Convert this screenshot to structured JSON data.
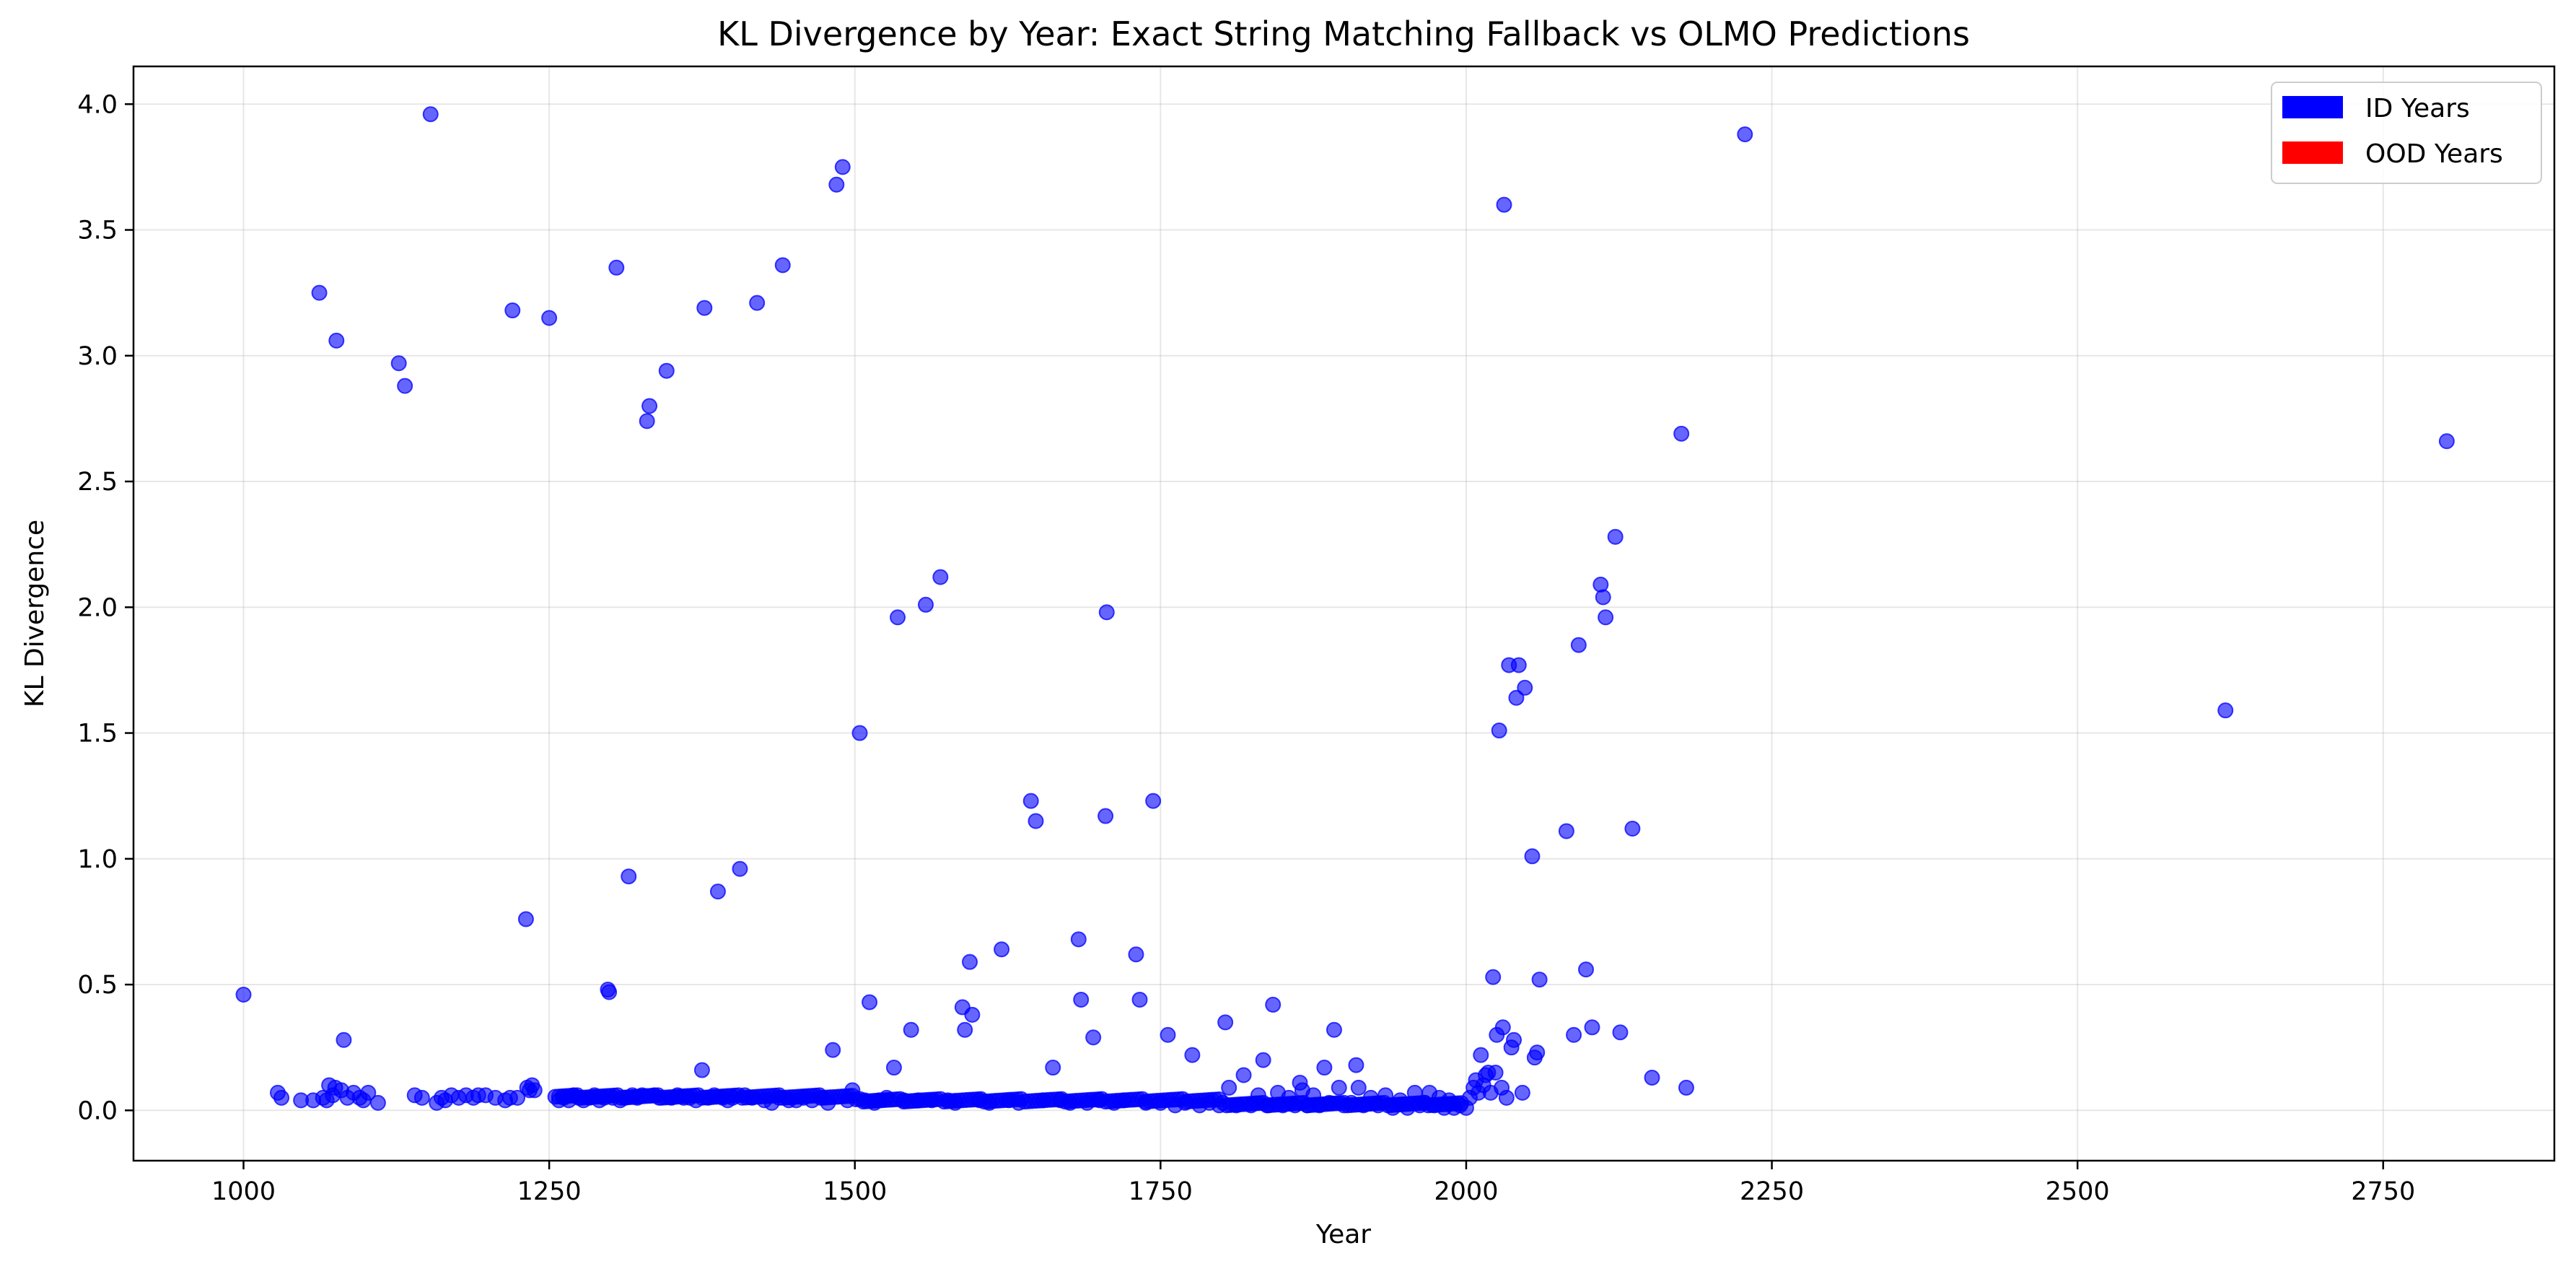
{
  "chart_data": {
    "type": "scatter",
    "title": "KL Divergence by Year: Exact String Matching Fallback vs OLMO Predictions",
    "xlabel": "Year",
    "ylabel": "KL Divergence",
    "xlim": [
      910,
      2890
    ],
    "ylim": [
      -0.2,
      4.15
    ],
    "xticks": [
      1000,
      1250,
      1500,
      1750,
      2000,
      2250,
      2500,
      2750
    ],
    "yticks": [
      0.0,
      0.5,
      1.0,
      1.5,
      2.0,
      2.5,
      3.0,
      3.5,
      4.0
    ],
    "grid": true,
    "legend_position": "top-right",
    "legend": [
      {
        "label": "ID Years",
        "color": "#0000ff"
      },
      {
        "label": "OOD Years",
        "color": "#ff0000"
      }
    ],
    "marker_color": "#0000ff",
    "marker_opacity": 0.6,
    "points": [
      [
        1000,
        0.46
      ],
      [
        1028,
        0.07
      ],
      [
        1031,
        0.05
      ],
      [
        1047,
        0.04
      ],
      [
        1057,
        0.04
      ],
      [
        1062,
        3.25
      ],
      [
        1065,
        0.05
      ],
      [
        1068,
        0.04
      ],
      [
        1070,
        0.1
      ],
      [
        1073,
        0.06
      ],
      [
        1075,
        0.09
      ],
      [
        1076,
        3.06
      ],
      [
        1080,
        0.08
      ],
      [
        1082,
        0.28
      ],
      [
        1085,
        0.05
      ],
      [
        1090,
        0.07
      ],
      [
        1095,
        0.05
      ],
      [
        1098,
        0.04
      ],
      [
        1102,
        0.07
      ],
      [
        1110,
        0.03
      ],
      [
        1127,
        2.97
      ],
      [
        1132,
        2.88
      ],
      [
        1140,
        0.06
      ],
      [
        1146,
        0.05
      ],
      [
        1153,
        3.96
      ],
      [
        1158,
        0.03
      ],
      [
        1162,
        0.05
      ],
      [
        1165,
        0.04
      ],
      [
        1170,
        0.06
      ],
      [
        1176,
        0.05
      ],
      [
        1182,
        0.06
      ],
      [
        1188,
        0.05
      ],
      [
        1192,
        0.06
      ],
      [
        1198,
        0.06
      ],
      [
        1206,
        0.05
      ],
      [
        1214,
        0.04
      ],
      [
        1218,
        0.05
      ],
      [
        1220,
        3.18
      ],
      [
        1224,
        0.05
      ],
      [
        1231,
        0.76
      ],
      [
        1232,
        0.09
      ],
      [
        1234,
        0.08
      ],
      [
        1236,
        0.1
      ],
      [
        1238,
        0.08
      ],
      [
        1250,
        3.15
      ],
      [
        1258,
        0.04
      ],
      [
        1262,
        0.05
      ],
      [
        1266,
        0.04
      ],
      [
        1270,
        0.06
      ],
      [
        1274,
        0.05
      ],
      [
        1278,
        0.04
      ],
      [
        1283,
        0.05
      ],
      [
        1287,
        0.06
      ],
      [
        1291,
        0.04
      ],
      [
        1295,
        0.05
      ],
      [
        1298,
        0.48
      ],
      [
        1299,
        0.47
      ],
      [
        1302,
        0.05
      ],
      [
        1305,
        3.35
      ],
      [
        1308,
        0.04
      ],
      [
        1312,
        0.05
      ],
      [
        1315,
        0.93
      ],
      [
        1318,
        0.06
      ],
      [
        1322,
        0.05
      ],
      [
        1326,
        0.06
      ],
      [
        1330,
        2.74
      ],
      [
        1332,
        2.8
      ],
      [
        1336,
        0.06
      ],
      [
        1340,
        0.05
      ],
      [
        1346,
        2.94
      ],
      [
        1350,
        0.05
      ],
      [
        1355,
        0.06
      ],
      [
        1360,
        0.05
      ],
      [
        1365,
        0.05
      ],
      [
        1370,
        0.04
      ],
      [
        1375,
        0.16
      ],
      [
        1377,
        3.19
      ],
      [
        1380,
        0.05
      ],
      [
        1385,
        0.06
      ],
      [
        1388,
        0.87
      ],
      [
        1392,
        0.05
      ],
      [
        1396,
        0.04
      ],
      [
        1400,
        0.05
      ],
      [
        1406,
        0.96
      ],
      [
        1410,
        0.06
      ],
      [
        1416,
        0.05
      ],
      [
        1420,
        3.21
      ],
      [
        1426,
        0.04
      ],
      [
        1432,
        0.03
      ],
      [
        1438,
        0.05
      ],
      [
        1441,
        3.36
      ],
      [
        1446,
        0.04
      ],
      [
        1452,
        0.04
      ],
      [
        1458,
        0.05
      ],
      [
        1465,
        0.04
      ],
      [
        1472,
        0.05
      ],
      [
        1478,
        0.03
      ],
      [
        1482,
        0.24
      ],
      [
        1485,
        3.68
      ],
      [
        1490,
        3.75
      ],
      [
        1494,
        0.04
      ],
      [
        1498,
        0.08
      ],
      [
        1504,
        1.5
      ],
      [
        1508,
        0.04
      ],
      [
        1512,
        0.43
      ],
      [
        1516,
        0.03
      ],
      [
        1520,
        0.04
      ],
      [
        1526,
        0.05
      ],
      [
        1532,
        0.17
      ],
      [
        1535,
        1.96
      ],
      [
        1540,
        0.04
      ],
      [
        1546,
        0.32
      ],
      [
        1552,
        0.04
      ],
      [
        1558,
        2.01
      ],
      [
        1563,
        0.04
      ],
      [
        1570,
        2.12
      ],
      [
        1576,
        0.04
      ],
      [
        1582,
        0.03
      ],
      [
        1588,
        0.41
      ],
      [
        1590,
        0.32
      ],
      [
        1594,
        0.59
      ],
      [
        1596,
        0.38
      ],
      [
        1602,
        0.04
      ],
      [
        1610,
        0.03
      ],
      [
        1620,
        0.64
      ],
      [
        1626,
        0.04
      ],
      [
        1634,
        0.03
      ],
      [
        1644,
        1.23
      ],
      [
        1648,
        1.15
      ],
      [
        1654,
        0.04
      ],
      [
        1662,
        0.17
      ],
      [
        1668,
        0.04
      ],
      [
        1676,
        0.03
      ],
      [
        1683,
        0.68
      ],
      [
        1685,
        0.44
      ],
      [
        1690,
        0.03
      ],
      [
        1695,
        0.29
      ],
      [
        1700,
        0.04
      ],
      [
        1705,
        1.17
      ],
      [
        1706,
        1.98
      ],
      [
        1712,
        0.03
      ],
      [
        1720,
        0.04
      ],
      [
        1730,
        0.62
      ],
      [
        1733,
        0.44
      ],
      [
        1738,
        0.03
      ],
      [
        1744,
        1.23
      ],
      [
        1750,
        0.03
      ],
      [
        1756,
        0.3
      ],
      [
        1762,
        0.02
      ],
      [
        1770,
        0.03
      ],
      [
        1776,
        0.22
      ],
      [
        1782,
        0.02
      ],
      [
        1790,
        0.03
      ],
      [
        1798,
        0.02
      ],
      [
        1803,
        0.35
      ],
      [
        1806,
        0.09
      ],
      [
        1812,
        0.02
      ],
      [
        1818,
        0.14
      ],
      [
        1824,
        0.02
      ],
      [
        1830,
        0.06
      ],
      [
        1834,
        0.2
      ],
      [
        1838,
        0.02
      ],
      [
        1842,
        0.42
      ],
      [
        1846,
        0.07
      ],
      [
        1850,
        0.02
      ],
      [
        1855,
        0.05
      ],
      [
        1860,
        0.02
      ],
      [
        1864,
        0.11
      ],
      [
        1866,
        0.08
      ],
      [
        1870,
        0.02
      ],
      [
        1875,
        0.06
      ],
      [
        1880,
        0.02
      ],
      [
        1884,
        0.17
      ],
      [
        1888,
        0.03
      ],
      [
        1892,
        0.32
      ],
      [
        1896,
        0.09
      ],
      [
        1900,
        0.02
      ],
      [
        1906,
        0.03
      ],
      [
        1910,
        0.18
      ],
      [
        1912,
        0.09
      ],
      [
        1916,
        0.02
      ],
      [
        1922,
        0.05
      ],
      [
        1928,
        0.02
      ],
      [
        1934,
        0.06
      ],
      [
        1940,
        0.01
      ],
      [
        1946,
        0.04
      ],
      [
        1952,
        0.01
      ],
      [
        1958,
        0.07
      ],
      [
        1962,
        0.02
      ],
      [
        1966,
        0.03
      ],
      [
        1970,
        0.07
      ],
      [
        1974,
        0.02
      ],
      [
        1978,
        0.05
      ],
      [
        1982,
        0.01
      ],
      [
        1986,
        0.04
      ],
      [
        1990,
        0.01
      ],
      [
        1995,
        0.02
      ],
      [
        2000,
        0.01
      ],
      [
        2003,
        0.05
      ],
      [
        2006,
        0.09
      ],
      [
        2008,
        0.12
      ],
      [
        2010,
        0.07
      ],
      [
        2012,
        0.22
      ],
      [
        2014,
        0.1
      ],
      [
        2016,
        0.14
      ],
      [
        2018,
        0.15
      ],
      [
        2020,
        0.07
      ],
      [
        2022,
        0.53
      ],
      [
        2024,
        0.15
      ],
      [
        2025,
        0.3
      ],
      [
        2027,
        1.51
      ],
      [
        2029,
        0.09
      ],
      [
        2030,
        0.33
      ],
      [
        2031,
        3.6
      ],
      [
        2033,
        0.05
      ],
      [
        2035,
        1.77
      ],
      [
        2037,
        0.25
      ],
      [
        2039,
        0.28
      ],
      [
        2041,
        1.64
      ],
      [
        2043,
        1.77
      ],
      [
        2046,
        0.07
      ],
      [
        2048,
        1.68
      ],
      [
        2054,
        1.01
      ],
      [
        2056,
        0.21
      ],
      [
        2058,
        0.23
      ],
      [
        2060,
        0.52
      ],
      [
        2082,
        1.11
      ],
      [
        2088,
        0.3
      ],
      [
        2092,
        1.85
      ],
      [
        2098,
        0.56
      ],
      [
        2103,
        0.33
      ],
      [
        2110,
        2.09
      ],
      [
        2112,
        2.04
      ],
      [
        2114,
        1.96
      ],
      [
        2122,
        2.28
      ],
      [
        2126,
        0.31
      ],
      [
        2136,
        1.12
      ],
      [
        2152,
        0.13
      ],
      [
        2176,
        2.69
      ],
      [
        2180,
        0.09
      ],
      [
        2228,
        3.88
      ],
      [
        2621,
        1.59
      ],
      [
        2802,
        2.66
      ]
    ]
  }
}
